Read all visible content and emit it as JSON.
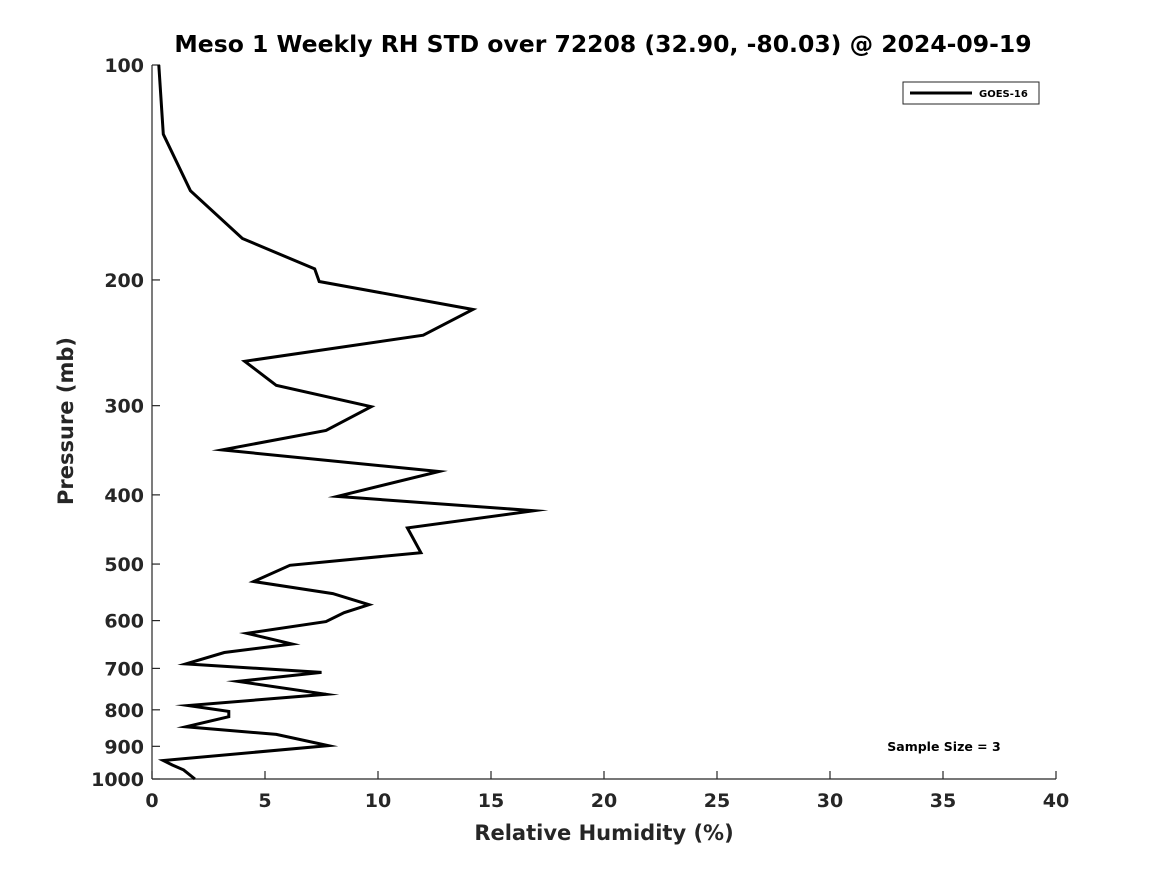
{
  "chart_data": {
    "type": "line",
    "title": "Meso 1 Weekly RH STD over 72208 (32.90, -80.03) @ 2024-09-19",
    "xlabel": "Relative Humidity (%)",
    "ylabel": "Pressure (mb)",
    "xlim": [
      0,
      40
    ],
    "ylim": [
      100,
      1000
    ],
    "y_scale": "log",
    "y_reversed": true,
    "x_ticks": [
      0,
      5,
      10,
      15,
      20,
      25,
      30,
      35,
      40
    ],
    "y_ticks": [
      100,
      200,
      300,
      400,
      500,
      600,
      700,
      800,
      900,
      1000
    ],
    "grid": false,
    "legend_position": "top-right",
    "annotation": "Sample Size = 3",
    "color": "#000000",
    "series": [
      {
        "name": "GOES-16",
        "points": [
          [
            0.3,
            100
          ],
          [
            0.5,
            125
          ],
          [
            1.7,
            150
          ],
          [
            4.0,
            175
          ],
          [
            7.2,
            193
          ],
          [
            7.4,
            201
          ],
          [
            14.2,
            220
          ],
          [
            12.0,
            239
          ],
          [
            4.1,
            260
          ],
          [
            5.5,
            281
          ],
          [
            9.7,
            301
          ],
          [
            7.7,
            325
          ],
          [
            3.1,
            346
          ],
          [
            12.7,
            371
          ],
          [
            8.2,
            402
          ],
          [
            16.9,
            421
          ],
          [
            11.3,
            445
          ],
          [
            11.9,
            482
          ],
          [
            6.1,
            502
          ],
          [
            4.5,
            529
          ],
          [
            8.0,
            550
          ],
          [
            9.6,
            570
          ],
          [
            8.5,
            585
          ],
          [
            7.7,
            602
          ],
          [
            4.2,
            625
          ],
          [
            6.2,
            647
          ],
          [
            3.2,
            665
          ],
          [
            1.5,
            690
          ],
          [
            7.5,
            709
          ],
          [
            3.8,
            730
          ],
          [
            7.7,
            761
          ],
          [
            1.6,
            789
          ],
          [
            3.4,
            804
          ],
          [
            3.4,
            818
          ],
          [
            1.5,
            845
          ],
          [
            5.5,
            866
          ],
          [
            7.8,
            898
          ],
          [
            0.5,
            942
          ],
          [
            0.9,
            956
          ],
          [
            1.4,
            971
          ],
          [
            1.9,
            1000
          ]
        ]
      }
    ]
  }
}
